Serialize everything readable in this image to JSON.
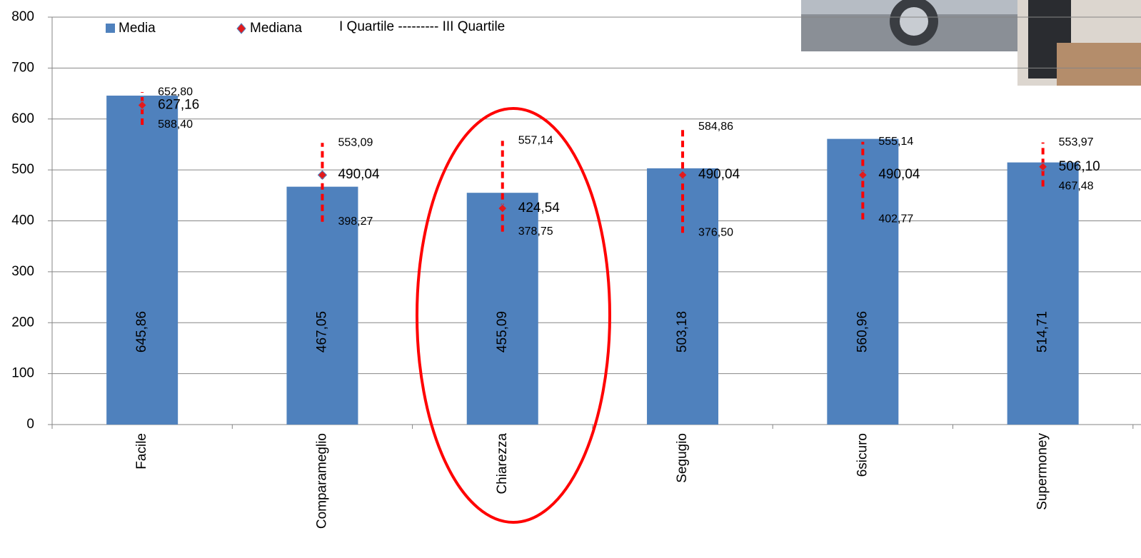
{
  "chart_data": {
    "type": "bar",
    "categories": [
      "Facile",
      "Comparameglio",
      "Chiarezza",
      "Segugio",
      "6sicuro",
      "Supermoney"
    ],
    "series": [
      {
        "name": "Media",
        "color": "#4f81bd",
        "values": [
          645.86,
          467.05,
          455.09,
          503.18,
          560.96,
          514.71
        ],
        "value_labels": [
          "645,86",
          "467,05",
          "455,09",
          "503,18",
          "560,96",
          "514,71"
        ]
      },
      {
        "name": "Mediana",
        "color": "#e31a1c",
        "values": [
          627.16,
          490.04,
          424.54,
          490.04,
          490.04,
          506.1
        ],
        "value_labels": [
          "627,16",
          "490,04",
          "424,54",
          "490,04",
          "490,04",
          "506,10"
        ]
      }
    ],
    "quartiles": {
      "legend": "I Quartile --------- III Quartile",
      "color": "#ff0000",
      "q1": [
        588.4,
        398.27,
        378.75,
        376.5,
        402.77,
        467.48
      ],
      "q1_labels": [
        "588,40",
        "398,27",
        "378,75",
        "376,50",
        "402,77",
        "467,48"
      ],
      "q3": [
        652.8,
        553.09,
        557.14,
        584.86,
        555.14,
        553.97
      ],
      "q3_labels": [
        "652,80",
        "553,09",
        "557,14",
        "584,86",
        "555,14",
        "553,97"
      ]
    },
    "ylim": [
      0,
      800
    ],
    "yticks": [
      0,
      100,
      200,
      300,
      400,
      500,
      600,
      700,
      800
    ],
    "grid": true
  }
}
